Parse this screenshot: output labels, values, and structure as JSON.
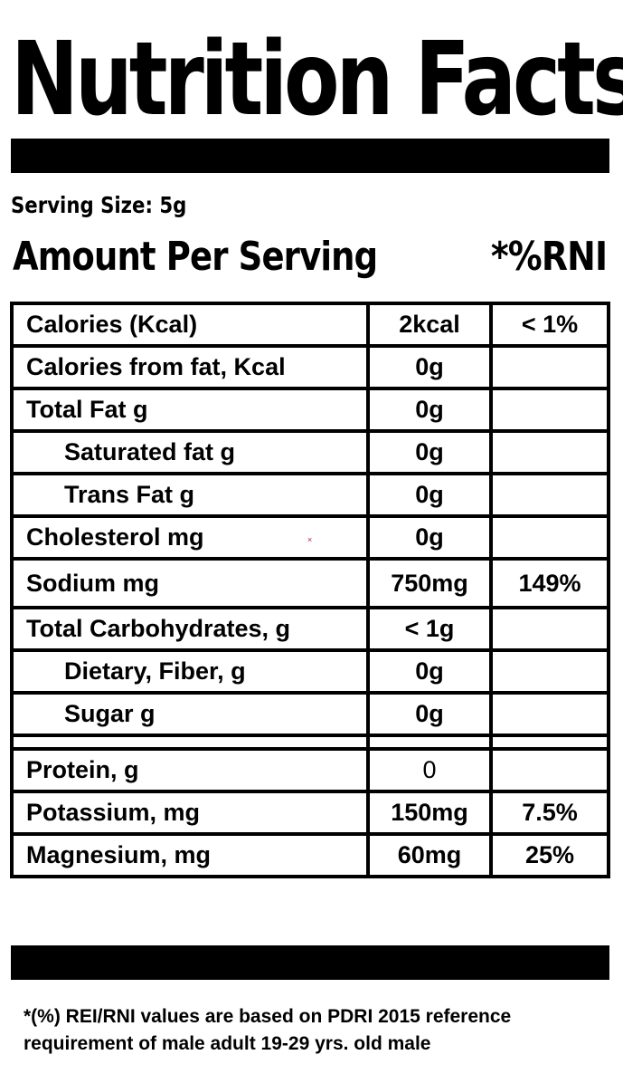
{
  "title": "Nutrition Facts",
  "serving_size": "Serving Size: 5g",
  "amount_heading": "Amount Per Serving",
  "rni_heading": "*%RNI",
  "rows": [
    {
      "label": "Calories (Kcal)",
      "amount": "2kcal",
      "rni": "< 1%"
    },
    {
      "label": "Calories from fat, Kcal",
      "amount": "0g",
      "rni": ""
    },
    {
      "label": "Total Fat g",
      "amount": "0g",
      "rni": ""
    },
    {
      "label": "Saturated fat g",
      "amount": "0g",
      "rni": ""
    },
    {
      "label": "Trans Fat g",
      "amount": "0g",
      "rni": ""
    },
    {
      "label": "Cholesterol mg",
      "amount": "0g",
      "rni": ""
    },
    {
      "label": "Sodium mg",
      "amount": "750mg",
      "rni": "149%"
    },
    {
      "label": "Total Carbohydrates, g",
      "amount": "< 1g",
      "rni": ""
    },
    {
      "label": "Dietary, Fiber, g",
      "amount": "0g",
      "rni": ""
    },
    {
      "label": "Sugar g",
      "amount": "0g",
      "rni": ""
    },
    {
      "label": "",
      "amount": "",
      "rni": ""
    },
    {
      "label": "Protein, g",
      "amount": "0",
      "rni": ""
    },
    {
      "label": "Potassium, mg",
      "amount": "150mg",
      "rni": "7.5%"
    },
    {
      "label": "Magnesium, mg",
      "amount": "60mg",
      "rni": "25%"
    }
  ],
  "footnote": {
    "line1": "*(%) REI/RNI values are based on PDRI 2015 reference",
    "line2": "requirement of male adult 19-29 yrs. old male"
  },
  "speck_mark": "×"
}
